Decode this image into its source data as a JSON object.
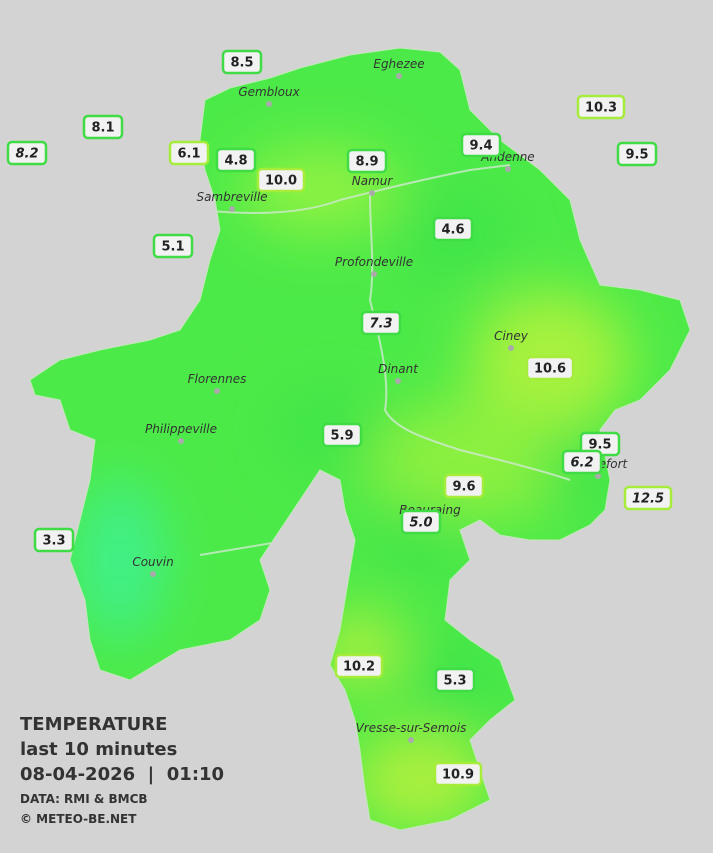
{
  "map": {
    "stations": [
      {
        "value": "8.5"
      },
      {
        "value": "8.1"
      },
      {
        "value": "8.2",
        "italic": true
      },
      {
        "value": "6.1"
      },
      {
        "value": "4.8"
      },
      {
        "value": "10.0"
      },
      {
        "value": "8.9"
      },
      {
        "value": "9.4"
      },
      {
        "value": "10.3"
      },
      {
        "value": "9.5"
      },
      {
        "value": "5.1"
      },
      {
        "value": "4.6"
      },
      {
        "value": "7.3",
        "italic": true
      },
      {
        "value": "10.6"
      },
      {
        "value": "5.9"
      },
      {
        "value": "9.5"
      },
      {
        "value": "6.2",
        "italic": true
      },
      {
        "value": "9.6"
      },
      {
        "value": "12.5",
        "italic": true
      },
      {
        "value": "5.0",
        "italic": true
      },
      {
        "value": "3.3"
      },
      {
        "value": "10.2"
      },
      {
        "value": "5.3"
      },
      {
        "value": "10.9"
      }
    ],
    "towns": [
      "Eghezee",
      "Gembloux",
      "Andenne",
      "Namur",
      "Sambreville",
      "Profondeville",
      "Ciney",
      "Dinant",
      "Florennes",
      "Philippeville",
      "Beauraing",
      "Rochefort",
      "Couvin",
      "Vresse-sur-Semois"
    ],
    "legend": {
      "title": "TEMPERATURE",
      "subtitle": "last 10 minutes",
      "datetime": "08-04-2026  |  01:10",
      "source": "DATA: RMI & BMCB",
      "copyright": "© METEO-BE.NET"
    }
  }
}
